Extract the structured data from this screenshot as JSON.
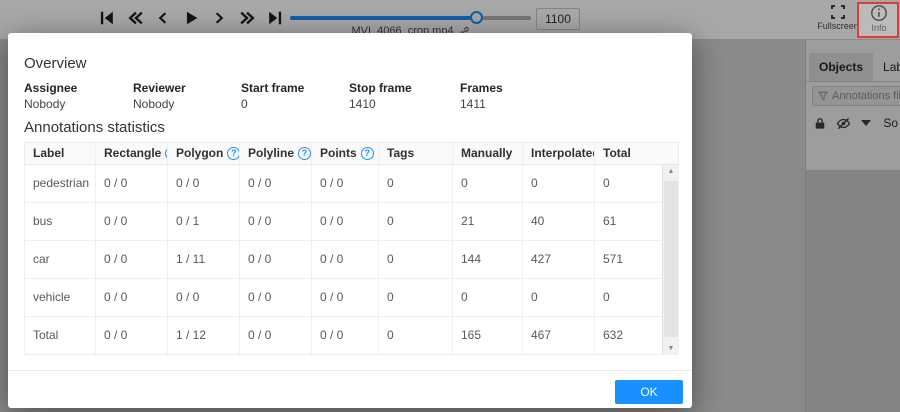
{
  "header": {
    "player_icons": [
      "first-frame",
      "backward-jump",
      "previous-frame",
      "play",
      "next-frame",
      "forward-jump",
      "last-frame"
    ],
    "slider_percent": 77.5,
    "filename": "MVI_4066_crop.mp4",
    "frame_number": "1100",
    "fullscreen_label": "Fullscreen",
    "info_label": "Info",
    "accent_color": "#1890ff"
  },
  "sidebar": {
    "tabs": [
      {
        "label": "Objects",
        "active": true
      },
      {
        "label": "Labels",
        "active": false
      }
    ],
    "filter_placeholder": "Annotations filter",
    "sort_label": "So"
  },
  "modal": {
    "title": "Overview",
    "fields": [
      {
        "label": "Assignee",
        "value": "Nobody"
      },
      {
        "label": "Reviewer",
        "value": "Nobody"
      },
      {
        "label": "Start frame",
        "value": "0"
      },
      {
        "label": "Stop frame",
        "value": "1410"
      },
      {
        "label": "Frames",
        "value": "1411"
      }
    ],
    "stats_title": "Annotations statistics",
    "table": {
      "columns": [
        {
          "label": "Label",
          "help": false
        },
        {
          "label": "Rectangle",
          "help": true
        },
        {
          "label": "Polygon",
          "help": true
        },
        {
          "label": "Polyline",
          "help": true
        },
        {
          "label": "Points",
          "help": true
        },
        {
          "label": "Tags",
          "help": false
        },
        {
          "label": "Manually",
          "help": false
        },
        {
          "label": "Interpolated",
          "help": false
        },
        {
          "label": "Total",
          "help": false
        }
      ],
      "help_icon_glyph": "?",
      "rows": [
        [
          "pedestrian",
          "0 / 0",
          "0 / 0",
          "0 / 0",
          "0 / 0",
          "0",
          "0",
          "0",
          "0"
        ],
        [
          "bus",
          "0 / 0",
          "0 / 1",
          "0 / 0",
          "0 / 0",
          "0",
          "21",
          "40",
          "61"
        ],
        [
          "car",
          "0 / 0",
          "1 / 11",
          "0 / 0",
          "0 / 0",
          "0",
          "144",
          "427",
          "571"
        ],
        [
          "vehicle",
          "0 / 0",
          "0 / 0",
          "0 / 0",
          "0 / 0",
          "0",
          "0",
          "0",
          "0"
        ],
        [
          "Total",
          "0 / 0",
          "1 / 12",
          "0 / 0",
          "0 / 0",
          "0",
          "165",
          "467",
          "632"
        ]
      ]
    },
    "ok_label": "OK"
  },
  "annotation_highlight": {
    "color": "#dd3c3c",
    "target": "info-button"
  }
}
